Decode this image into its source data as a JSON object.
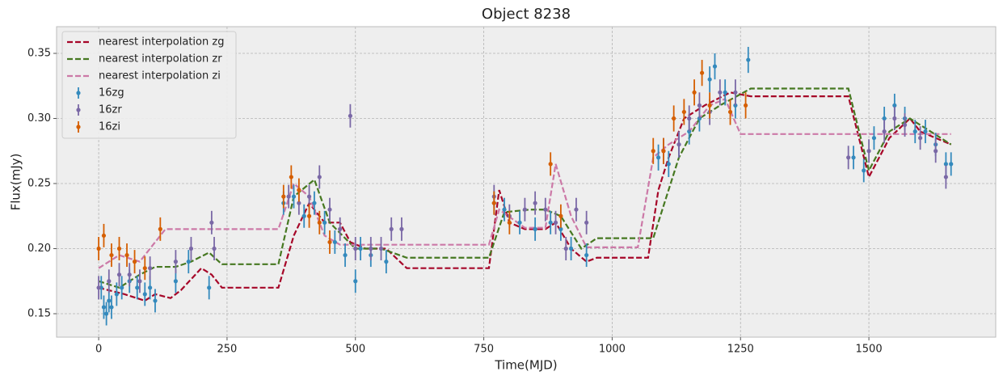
{
  "chart_data": {
    "type": "errorbar",
    "title": "Object 8238",
    "x_label": "Time(MJD)",
    "y_label": "Flux(mJy)",
    "xlim": [
      -82,
      1747
    ],
    "ylim": [
      0.132,
      0.3705
    ],
    "xticks": [
      0,
      250,
      500,
      750,
      1000,
      1250,
      1500
    ],
    "yticks": [
      0.15,
      {
        "value": 0.2,
        "label": "0.20"
      },
      0.25,
      {
        "value": 0.3,
        "label": "0.30"
      },
      0.35
    ],
    "grid": true,
    "legend": "upper left",
    "series": [
      {
        "name": "nearest interpolation zg",
        "color": "#A60628",
        "linestyle": "dashed",
        "x": [
          0,
          20,
          50,
          90,
          110,
          140,
          160,
          200,
          220,
          240,
          350,
          380,
          410,
          440,
          470,
          490,
          520,
          560,
          600,
          760,
          780,
          800,
          830,
          870,
          890,
          920,
          950,
          970,
          1070,
          1090,
          1110,
          1140,
          1180,
          1230,
          1270,
          1460,
          1500,
          1540,
          1580,
          1600,
          1660
        ],
        "values": [
          0.17,
          0.168,
          0.165,
          0.16,
          0.165,
          0.162,
          0.168,
          0.185,
          0.18,
          0.17,
          0.17,
          0.21,
          0.235,
          0.22,
          0.22,
          0.205,
          0.2,
          0.2,
          0.185,
          0.185,
          0.245,
          0.22,
          0.215,
          0.215,
          0.22,
          0.2,
          0.19,
          0.193,
          0.193,
          0.245,
          0.27,
          0.3,
          0.31,
          0.32,
          0.317,
          0.317,
          0.255,
          0.285,
          0.3,
          0.29,
          0.28
        ]
      },
      {
        "name": "nearest interpolation zr",
        "color": "#467821",
        "linestyle": "dashed",
        "x": [
          0,
          40,
          80,
          110,
          150,
          180,
          215,
          240,
          350,
          380,
          420,
          450,
          500,
          550,
          600,
          760,
          790,
          840,
          870,
          900,
          940,
          970,
          1080,
          1130,
          1170,
          1210,
          1270,
          1460,
          1500,
          1540,
          1580,
          1660
        ],
        "values": [
          0.175,
          0.17,
          0.18,
          0.186,
          0.186,
          0.19,
          0.197,
          0.188,
          0.188,
          0.24,
          0.253,
          0.22,
          0.2,
          0.2,
          0.193,
          0.193,
          0.228,
          0.23,
          0.23,
          0.225,
          0.2,
          0.208,
          0.208,
          0.27,
          0.3,
          0.31,
          0.323,
          0.323,
          0.26,
          0.29,
          0.3,
          0.28
        ]
      },
      {
        "name": "nearest interpolation zi",
        "color": "#CC79A7",
        "linestyle": "dashed",
        "x": [
          0,
          40,
          80,
          130,
          350,
          380,
          410,
          440,
          470,
          760,
          780,
          830,
          870,
          890,
          920,
          950,
          1050,
          1080,
          1110,
          1150,
          1190,
          1220,
          1250,
          1660
        ],
        "values": [
          0.185,
          0.195,
          0.19,
          0.215,
          0.215,
          0.25,
          0.24,
          0.21,
          0.203,
          0.203,
          0.23,
          0.216,
          0.216,
          0.265,
          0.225,
          0.201,
          0.201,
          0.27,
          0.28,
          0.29,
          0.31,
          0.315,
          0.288,
          0.288
        ]
      },
      {
        "name": "16zg",
        "color": "#348ABD",
        "x": [
          5,
          10,
          15,
          20,
          25,
          35,
          45,
          60,
          75,
          90,
          100,
          110,
          150,
          175,
          215,
          360,
          380,
          400,
          420,
          440,
          460,
          480,
          500,
          510,
          530,
          560,
          770,
          790,
          820,
          850,
          880,
          900,
          920,
          950,
          1090,
          1110,
          1130,
          1150,
          1170,
          1190,
          1200,
          1220,
          1240,
          1265,
          1470,
          1490,
          1510,
          1530,
          1550,
          1570,
          1590,
          1610,
          1630,
          1650,
          1660
        ],
        "values": [
          0.17,
          0.155,
          0.15,
          0.16,
          0.155,
          0.165,
          0.17,
          0.175,
          0.17,
          0.165,
          0.17,
          0.16,
          0.175,
          0.19,
          0.17,
          0.235,
          0.24,
          0.225,
          0.235,
          0.22,
          0.205,
          0.195,
          0.175,
          0.2,
          0.195,
          0.19,
          0.235,
          0.23,
          0.22,
          0.215,
          0.22,
          0.215,
          0.2,
          0.195,
          0.27,
          0.265,
          0.28,
          0.29,
          0.3,
          0.33,
          0.34,
          0.32,
          0.31,
          0.345,
          0.27,
          0.26,
          0.285,
          0.3,
          0.31,
          0.3,
          0.29,
          0.29,
          0.28,
          0.265,
          0.265
        ],
        "errors": [
          0.009,
          0.009,
          0.009,
          0.009,
          0.009,
          0.009,
          0.009,
          0.009,
          0.009,
          0.009,
          0.009,
          0.009,
          0.009,
          0.009,
          0.009,
          0.009,
          0.009,
          0.009,
          0.009,
          0.009,
          0.009,
          0.009,
          0.009,
          0.009,
          0.009,
          0.009,
          0.009,
          0.009,
          0.009,
          0.009,
          0.009,
          0.009,
          0.009,
          0.009,
          0.01,
          0.01,
          0.01,
          0.01,
          0.01,
          0.01,
          0.01,
          0.01,
          0.01,
          0.01,
          0.009,
          0.009,
          0.009,
          0.009,
          0.009,
          0.009,
          0.009,
          0.009,
          0.009,
          0.009,
          0.009
        ]
      },
      {
        "name": "16zr",
        "color": "#7A68A6",
        "x": [
          0,
          20,
          40,
          60,
          80,
          100,
          150,
          180,
          220,
          225,
          370,
          390,
          410,
          430,
          450,
          470,
          490,
          500,
          530,
          550,
          570,
          590,
          770,
          800,
          830,
          850,
          870,
          890,
          910,
          930,
          950,
          1100,
          1130,
          1150,
          1170,
          1190,
          1210,
          1240,
          1460,
          1500,
          1530,
          1550,
          1570,
          1600,
          1630,
          1650
        ],
        "values": [
          0.17,
          0.175,
          0.18,
          0.18,
          0.175,
          0.185,
          0.19,
          0.2,
          0.22,
          0.2,
          0.24,
          0.235,
          0.24,
          0.255,
          0.23,
          0.215,
          0.302,
          0.2,
          0.2,
          0.2,
          0.215,
          0.215,
          0.24,
          0.225,
          0.23,
          0.235,
          0.23,
          0.22,
          0.2,
          0.23,
          0.22,
          0.275,
          0.28,
          0.3,
          0.31,
          0.305,
          0.32,
          0.32,
          0.27,
          0.275,
          0.29,
          0.3,
          0.295,
          0.285,
          0.275,
          0.255
        ],
        "errors": [
          0.009,
          0.009,
          0.009,
          0.009,
          0.009,
          0.009,
          0.009,
          0.009,
          0.009,
          0.009,
          0.009,
          0.009,
          0.009,
          0.009,
          0.009,
          0.009,
          0.009,
          0.009,
          0.009,
          0.009,
          0.009,
          0.009,
          0.009,
          0.009,
          0.009,
          0.009,
          0.009,
          0.009,
          0.009,
          0.009,
          0.009,
          0.01,
          0.01,
          0.01,
          0.01,
          0.01,
          0.01,
          0.01,
          0.009,
          0.009,
          0.009,
          0.009,
          0.009,
          0.009,
          0.009,
          0.009
        ]
      },
      {
        "name": "16zi",
        "color": "#D55E00",
        "x": [
          0,
          10,
          25,
          40,
          55,
          70,
          90,
          120,
          360,
          375,
          390,
          410,
          430,
          450,
          770,
          800,
          880,
          900,
          1080,
          1100,
          1120,
          1140,
          1160,
          1175,
          1190,
          1230,
          1260
        ],
        "values": [
          0.2,
          0.21,
          0.195,
          0.2,
          0.195,
          0.19,
          0.185,
          0.215,
          0.24,
          0.255,
          0.245,
          0.225,
          0.22,
          0.205,
          0.235,
          0.22,
          0.265,
          0.225,
          0.275,
          0.275,
          0.3,
          0.305,
          0.32,
          0.335,
          0.31,
          0.305,
          0.31
        ],
        "errors": [
          0.009,
          0.009,
          0.009,
          0.009,
          0.009,
          0.009,
          0.009,
          0.009,
          0.009,
          0.009,
          0.009,
          0.009,
          0.009,
          0.009,
          0.009,
          0.009,
          0.009,
          0.009,
          0.01,
          0.01,
          0.01,
          0.01,
          0.01,
          0.01,
          0.01,
          0.01,
          0.01
        ]
      }
    ]
  }
}
